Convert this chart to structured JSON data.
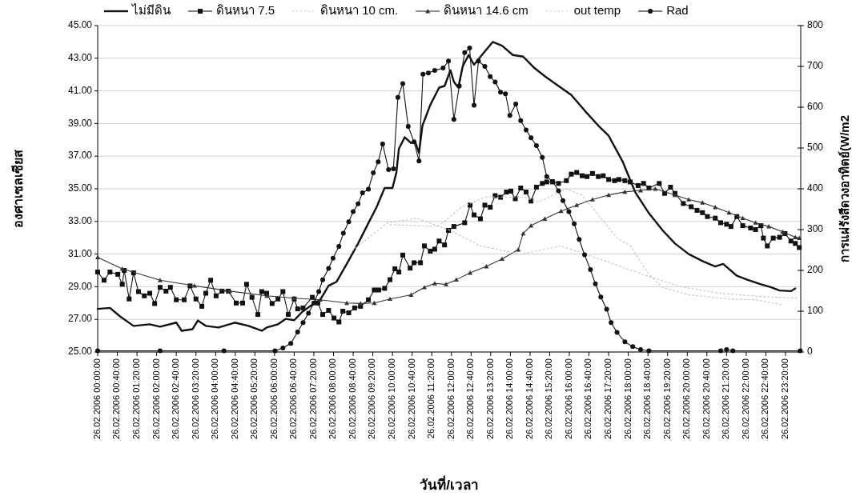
{
  "chart_data": {
    "type": "line",
    "xlabel": "วันที่/เวลา",
    "ylabel": "องศาเซลเซียส",
    "y2label": "การแผ่รังสีดวงอาทิตย์(W/m2",
    "xlim": [
      "2006-02-26T00:00",
      "2006-02-26T23:51"
    ],
    "ylim": [
      25,
      45
    ],
    "y2lim": [
      0,
      800
    ],
    "xticks": [
      {
        "value": "2006-02-26T00:00",
        "label": "26.02.2006 00:00:00"
      },
      {
        "value": "2006-02-26T00:40",
        "label": "26.02.2006 00:40:00"
      },
      {
        "value": "2006-02-26T01:20",
        "label": "26.02.2006 01:20:00"
      },
      {
        "value": "2006-02-26T02:00",
        "label": "26.02.2006 02:00:00"
      },
      {
        "value": "2006-02-26T02:40",
        "label": "26.02.2006 02:40:00"
      },
      {
        "value": "2006-02-26T03:20",
        "label": "26.02.2006 03:20:00"
      },
      {
        "value": "2006-02-26T04:00",
        "label": "26.02.2006 04:00:00"
      },
      {
        "value": "2006-02-26T04:40",
        "label": "26.02.2006 04:40:00"
      },
      {
        "value": "2006-02-26T05:20",
        "label": "26.02.2006 05:20:00"
      },
      {
        "value": "2006-02-26T06:00",
        "label": "26.02.2006 06:00:00"
      },
      {
        "value": "2006-02-26T06:40",
        "label": "26.02.2006 06:40:00"
      },
      {
        "value": "2006-02-26T07:20",
        "label": "26.02.2006 07:20:00"
      },
      {
        "value": "2006-02-26T08:00",
        "label": "26.02.2006 08:00:00"
      },
      {
        "value": "2006-02-26T08:40",
        "label": "26.02.2006 08:40:00"
      },
      {
        "value": "2006-02-26T09:20",
        "label": "26.02.2006 09:20:00"
      },
      {
        "value": "2006-02-26T10:00",
        "label": "26.02.2006 10:00:00"
      },
      {
        "value": "2006-02-26T10:40",
        "label": "26.02.2006 10:40:00"
      },
      {
        "value": "2006-02-26T11:20",
        "label": "26.02.2006 11:20:00"
      },
      {
        "value": "2006-02-26T12:00",
        "label": "26.02.2006 12:00:00"
      },
      {
        "value": "2006-02-26T12:40",
        "label": "26.02.2006 12:40:00"
      },
      {
        "value": "2006-02-26T13:20",
        "label": "26.02.2006 13:20:00"
      },
      {
        "value": "2006-02-26T14:00",
        "label": "26.02.2006 14:00:00"
      },
      {
        "value": "2006-02-26T14:40",
        "label": "26.02.2006 14:40:00"
      },
      {
        "value": "2006-02-26T15:20",
        "label": "26.02.2006 15:20:00"
      },
      {
        "value": "2006-02-26T16:00",
        "label": "26.02.2006 16:00:00"
      },
      {
        "value": "2006-02-26T16:40",
        "label": "26.02.2006 16:40:00"
      },
      {
        "value": "2006-02-26T17:20",
        "label": "26.02.2006 17:20:00"
      },
      {
        "value": "2006-02-26T18:00",
        "label": "26.02.2006 18:00:00"
      },
      {
        "value": "2006-02-26T18:40",
        "label": "26.02.2006 18:40:00"
      },
      {
        "value": "2006-02-26T19:20",
        "label": "26.02.2006 19:20:00"
      },
      {
        "value": "2006-02-26T20:00",
        "label": "26.02.2006 20:00:00"
      },
      {
        "value": "2006-02-26T20:40",
        "label": "26.02.2006 20:40:00"
      },
      {
        "value": "2006-02-26T21:20",
        "label": "26.02.2006 21:20:00"
      },
      {
        "value": "2006-02-26T22:00",
        "label": "26.02.2006 22:00:00"
      },
      {
        "value": "2006-02-26T22:40",
        "label": "26.02.2006 22:40:00"
      },
      {
        "value": "2006-02-26T23:20",
        "label": "26.02.2006 23:20:00"
      }
    ],
    "yticks": [
      {
        "value": 25,
        "label": "25.00"
      },
      {
        "value": 27,
        "label": "27.00"
      },
      {
        "value": 29,
        "label": "29.00"
      },
      {
        "value": 31,
        "label": "31.00"
      },
      {
        "value": 33,
        "label": "33.00"
      },
      {
        "value": 35,
        "label": "35.00"
      },
      {
        "value": 37,
        "label": "37.00"
      },
      {
        "value": 39,
        "label": "39.00"
      },
      {
        "value": 41,
        "label": "41.00"
      },
      {
        "value": 43,
        "label": "43.00"
      },
      {
        "value": 45,
        "label": "45.00"
      }
    ],
    "y2ticks": [
      0,
      100,
      200,
      300,
      400,
      500,
      600,
      700,
      800
    ],
    "grid": "y",
    "legend": "top",
    "series": [
      {
        "name": "ไม่มีดิน",
        "color": "#111111",
        "marker": "none",
        "x": [
          "2006-02-26T00:00",
          "2006-02-26T00:25",
          "2006-02-26T00:46",
          "2006-02-26T01:13",
          "2006-02-26T01:46",
          "2006-02-26T02:07",
          "2006-02-26T02:40",
          "2006-02-26T02:51",
          "2006-02-26T03:13",
          "2006-02-26T03:24",
          "2006-02-26T03:40",
          "2006-02-26T04:06",
          "2006-02-26T04:39",
          "2006-02-26T05:07",
          "2006-02-26T05:34",
          "2006-02-26T05:44",
          "2006-02-26T06:07",
          "2006-02-26T06:23",
          "2006-02-26T06:40",
          "2006-02-26T06:56",
          "2006-02-26T07:12",
          "2006-02-26T07:33",
          "2006-02-26T07:50",
          "2006-02-26T08:06",
          "2006-02-26T08:27",
          "2006-02-26T08:50",
          "2006-02-26T09:11",
          "2006-02-26T09:28",
          "2006-02-26T09:44",
          "2006-02-26T10:00",
          "2006-02-26T10:08",
          "2006-02-26T10:13",
          "2006-02-26T10:25",
          "2006-02-26T10:38",
          "2006-02-26T10:46",
          "2006-02-26T10:54",
          "2006-02-26T11:01",
          "2006-02-26T11:17",
          "2006-02-26T11:35",
          "2006-02-26T11:46",
          "2006-02-26T11:58",
          "2006-02-26T12:05",
          "2006-02-26T12:14",
          "2006-02-26T12:23",
          "2006-02-26T12:35",
          "2006-02-26T12:46",
          "2006-02-26T13:02",
          "2006-02-26T13:24",
          "2006-02-26T13:43",
          "2006-02-26T14:05",
          "2006-02-26T14:26",
          "2006-02-26T14:49",
          "2006-02-26T15:10",
          "2006-02-26T15:38",
          "2006-02-26T16:04",
          "2006-02-26T16:31",
          "2006-02-26T16:59",
          "2006-02-26T17:20",
          "2006-02-26T17:48",
          "2006-02-26T18:14",
          "2006-02-26T18:42",
          "2006-02-26T19:10",
          "2006-02-26T19:35",
          "2006-02-26T20:03",
          "2006-02-26T20:31",
          "2006-02-26T20:57",
          "2006-02-26T21:13",
          "2006-02-26T21:41",
          "2006-02-26T22:02",
          "2006-02-26T22:30",
          "2006-02-26T22:51",
          "2006-02-26T23:08",
          "2006-02-26T23:31",
          "2006-02-26T23:40"
        ],
        "values": [
          27.64,
          27.7,
          27.17,
          26.6,
          26.7,
          26.55,
          26.8,
          26.3,
          26.4,
          26.93,
          26.6,
          26.5,
          26.8,
          26.6,
          26.3,
          26.5,
          26.7,
          27.03,
          26.95,
          27.45,
          27.8,
          28.2,
          29.06,
          29.3,
          30.4,
          31.65,
          32.9,
          33.9,
          35.05,
          35.05,
          36.0,
          37.45,
          38.16,
          37.8,
          37.9,
          37.2,
          38.87,
          40.14,
          41.2,
          41.3,
          42.26,
          41.56,
          41.2,
          42.5,
          43.2,
          42.6,
          43.2,
          44.0,
          43.77,
          43.2,
          43.1,
          42.4,
          41.9,
          41.3,
          40.75,
          39.8,
          38.87,
          38.25,
          36.7,
          34.8,
          33.5,
          32.45,
          31.65,
          31.0,
          30.57,
          30.24,
          30.4,
          29.67,
          29.43,
          29.15,
          28.96,
          28.77,
          28.73,
          28.9
        ]
      },
      {
        "name": "ดินหนา 7.5",
        "color": "#111111",
        "marker": "square",
        "x": [
          "2006-02-26T00:00",
          "2006-02-26T00:13",
          "2006-02-26T00:25",
          "2006-02-26T00:41",
          "2006-02-26T00:50",
          "2006-02-26T00:54",
          "2006-02-26T01:04",
          "2006-02-26T01:13",
          "2006-02-26T01:23",
          "2006-02-26T01:35",
          "2006-02-26T01:46",
          "2006-02-26T01:56",
          "2006-02-26T02:07",
          "2006-02-26T02:19",
          "2006-02-26T02:28",
          "2006-02-26T02:40",
          "2006-02-26T02:56",
          "2006-02-26T03:08",
          "2006-02-26T03:20",
          "2006-02-26T03:32",
          "2006-02-26T03:40",
          "2006-02-26T03:50",
          "2006-02-26T04:01",
          "2006-02-26T04:13",
          "2006-02-26T04:26",
          "2006-02-26T04:42",
          "2006-02-26T04:55",
          "2006-02-26T05:03",
          "2006-02-26T05:14",
          "2006-02-26T05:26",
          "2006-02-26T05:34",
          "2006-02-26T05:44",
          "2006-02-26T05:55",
          "2006-02-26T06:07",
          "2006-02-26T06:17",
          "2006-02-26T06:28",
          "2006-02-26T06:40",
          "2006-02-26T06:47",
          "2006-02-26T06:58",
          "2006-02-26T07:17",
          "2006-02-26T07:28",
          "2006-02-26T07:38",
          "2006-02-26T07:50",
          "2006-02-26T08:01",
          "2006-02-26T08:11",
          "2006-02-26T08:19",
          "2006-02-26T08:31",
          "2006-02-26T08:43",
          "2006-02-26T08:55",
          "2006-02-26T09:11",
          "2006-02-26T09:23",
          "2006-02-26T09:32",
          "2006-02-26T09:44",
          "2006-02-26T09:55",
          "2006-02-26T10:05",
          "2006-02-26T10:13",
          "2006-02-26T10:21",
          "2006-02-26T10:36",
          "2006-02-26T10:44",
          "2006-02-26T10:57",
          "2006-02-26T11:05",
          "2006-02-26T11:17",
          "2006-02-26T11:26",
          "2006-02-26T11:35",
          "2006-02-26T11:46",
          "2006-02-26T11:54",
          "2006-02-26T12:05",
          "2006-02-26T12:27",
          "2006-02-26T12:38",
          "2006-02-26T12:46",
          "2006-02-26T12:59",
          "2006-02-26T13:08",
          "2006-02-26T13:19",
          "2006-02-26T13:29",
          "2006-02-26T13:40",
          "2006-02-26T13:52",
          "2006-02-26T14:01",
          "2006-02-26T14:10",
          "2006-02-26T14:21",
          "2006-02-26T14:32",
          "2006-02-26T14:42",
          "2006-02-26T14:53",
          "2006-02-26T15:05",
          "2006-02-26T15:14",
          "2006-02-26T15:26",
          "2006-02-26T15:38",
          "2006-02-26T15:54",
          "2006-02-26T16:04",
          "2006-02-26T16:15",
          "2006-02-26T16:26",
          "2006-02-26T16:36",
          "2006-02-26T16:47",
          "2006-02-26T16:59",
          "2006-02-26T17:09",
          "2006-02-26T17:20",
          "2006-02-26T17:32",
          "2006-02-26T17:41",
          "2006-02-26T17:53",
          "2006-02-26T18:04",
          "2006-02-26T18:20",
          "2006-02-26T18:31",
          "2006-02-26T18:42",
          "2006-02-26T19:03",
          "2006-02-26T19:14",
          "2006-02-26T19:26",
          "2006-02-26T19:35",
          "2006-02-26T19:52",
          "2006-02-26T20:08",
          "2006-02-26T20:20",
          "2006-02-26T20:31",
          "2006-02-26T20:41",
          "2006-02-26T20:57",
          "2006-02-26T21:08",
          "2006-02-26T21:20",
          "2006-02-26T21:29",
          "2006-02-26T21:41",
          "2006-02-26T21:53",
          "2006-02-26T22:09",
          "2006-02-26T22:19",
          "2006-02-26T22:30",
          "2006-02-26T22:35",
          "2006-02-26T22:43",
          "2006-02-26T22:55",
          "2006-02-26T23:08",
          "2006-02-26T23:19",
          "2006-02-26T23:31",
          "2006-02-26T23:40",
          "2006-02-26T23:48"
        ],
        "values": [
          29.9,
          29.4,
          29.9,
          29.76,
          29.15,
          30.0,
          28.25,
          29.85,
          28.7,
          28.44,
          28.6,
          27.97,
          28.96,
          28.73,
          28.96,
          28.2,
          28.2,
          29.05,
          28.25,
          27.8,
          28.6,
          29.4,
          28.44,
          28.73,
          28.73,
          28.0,
          28.0,
          29.15,
          28.35,
          27.3,
          28.7,
          28.6,
          27.97,
          28.25,
          28.7,
          27.3,
          28.25,
          27.64,
          27.7,
          28.35,
          28.0,
          27.3,
          27.55,
          27.08,
          26.84,
          27.5,
          27.4,
          27.7,
          27.8,
          28.2,
          28.8,
          28.8,
          28.9,
          29.43,
          30.1,
          29.9,
          30.94,
          30.14,
          30.47,
          30.47,
          31.5,
          31.18,
          31.3,
          31.8,
          31.56,
          32.45,
          32.69,
          32.92,
          34.0,
          33.4,
          33.16,
          34.0,
          33.87,
          34.58,
          34.48,
          34.8,
          34.86,
          34.39,
          35.05,
          34.8,
          34.25,
          35.1,
          35.33,
          35.42,
          35.42,
          35.33,
          35.5,
          35.9,
          36.0,
          35.8,
          35.75,
          35.94,
          35.75,
          35.8,
          35.57,
          35.5,
          35.57,
          35.5,
          35.42,
          35.2,
          35.33,
          35.05,
          35.33,
          34.72,
          35.1,
          34.72,
          34.1,
          33.9,
          33.68,
          33.54,
          33.3,
          33.2,
          32.92,
          32.83,
          32.69,
          33.3,
          32.74,
          32.6,
          32.5,
          32.74,
          31.98,
          31.5,
          31.98,
          32.03,
          32.26,
          31.8,
          31.65,
          31.4
        ]
      },
      {
        "name": "ดินหนา 10 cm.",
        "color": "#c4c4c4",
        "marker": "none",
        "line_style": "dotted",
        "x": [
          "2006-02-26T09:55",
          "2006-02-26T11:33",
          "2006-02-26T12:22",
          "2006-02-26T13:11",
          "2006-02-26T14:26",
          "2006-02-26T14:58",
          "2006-02-26T15:54",
          "2006-02-26T16:26",
          "2006-02-26T17:37",
          "2006-02-26T18:04",
          "2006-02-26T18:42",
          "2006-02-26T19:10",
          "2006-02-26T20:03",
          "2006-02-26T21:25",
          "2006-02-26T22:19",
          "2006-02-26T23:14"
        ],
        "values": [
          32.8,
          32.7,
          33.9,
          34.5,
          34.5,
          34.2,
          35.0,
          34.6,
          32.0,
          31.5,
          29.76,
          28.96,
          28.5,
          28.25,
          28.2,
          27.9
        ]
      },
      {
        "name": "ดินหนา 14.6 cm",
        "color": "#333333",
        "marker": "triangle",
        "x": [
          "2006-02-26T00:00",
          "2006-02-26T00:50",
          "2006-02-26T02:07",
          "2006-02-26T03:17",
          "2006-02-26T04:29",
          "2006-02-26T05:44",
          "2006-02-26T06:40",
          "2006-02-26T07:33",
          "2006-02-26T08:27",
          "2006-02-26T08:55",
          "2006-02-26T09:23",
          "2006-02-26T09:55",
          "2006-02-26T10:38",
          "2006-02-26T11:05",
          "2006-02-26T11:26",
          "2006-02-26T11:49",
          "2006-02-26T12:10",
          "2006-02-26T12:38",
          "2006-02-26T13:11",
          "2006-02-26T13:43",
          "2006-02-26T14:16",
          "2006-02-26T14:26",
          "2006-02-26T14:42",
          "2006-02-26T15:10",
          "2006-02-26T15:43",
          "2006-02-26T16:15",
          "2006-02-26T16:47",
          "2006-02-26T17:20",
          "2006-02-26T17:53",
          "2006-02-26T18:25",
          "2006-02-26T18:55",
          "2006-02-26T19:35",
          "2006-02-26T20:03",
          "2006-02-26T20:31",
          "2006-02-26T20:57",
          "2006-02-26T21:25",
          "2006-02-26T21:53",
          "2006-02-26T22:19",
          "2006-02-26T22:46",
          "2006-02-26T23:14",
          "2006-02-26T23:40",
          "2006-02-26T23:48"
        ],
        "values": [
          30.8,
          30.1,
          29.4,
          29.06,
          28.73,
          28.44,
          28.3,
          28.2,
          28.0,
          27.97,
          28.0,
          28.25,
          28.5,
          28.96,
          29.2,
          29.15,
          29.43,
          29.85,
          30.24,
          30.7,
          31.27,
          32.26,
          32.74,
          33.16,
          33.63,
          34.0,
          34.34,
          34.62,
          34.81,
          34.9,
          35.0,
          34.62,
          34.34,
          34.15,
          33.87,
          33.54,
          33.2,
          32.92,
          32.69,
          32.36,
          32.03,
          31.98
        ]
      },
      {
        "name": "out temp",
        "color": "#c4c4c4",
        "marker": "none",
        "line_style": "dotted",
        "x": [
          "2006-02-26T08:38",
          "2006-02-26T09:49",
          "2006-02-26T10:49",
          "2006-02-26T11:54",
          "2006-02-26T12:59",
          "2006-02-26T14:21",
          "2006-02-26T15:43",
          "2006-02-26T17:20",
          "2006-02-26T18:25",
          "2006-02-26T19:47",
          "2006-02-26T21:08",
          "2006-02-26T22:30",
          "2006-02-26T23:48"
        ],
        "values": [
          31.2,
          32.9,
          33.2,
          32.5,
          31.5,
          31.0,
          31.5,
          30.5,
          29.8,
          29.0,
          28.6,
          28.4,
          28.3
        ]
      },
      {
        "name": "Rad",
        "color": "#111111",
        "marker": "circle",
        "axis": "y2",
        "x": [
          "2006-02-26T00:00",
          "2006-02-26T02:07",
          "2006-02-26T04:17",
          "2006-02-26T06:01",
          "2006-02-26T06:17",
          "2006-02-26T06:33",
          "2006-02-26T06:47",
          "2006-02-26T06:58",
          "2006-02-26T07:09",
          "2006-02-26T07:20",
          "2006-02-26T07:30",
          "2006-02-26T07:38",
          "2006-02-26T07:50",
          "2006-02-26T07:59",
          "2006-02-26T08:11",
          "2006-02-26T08:20",
          "2006-02-26T08:31",
          "2006-02-26T08:40",
          "2006-02-26T08:50",
          "2006-02-26T08:59",
          "2006-02-26T09:11",
          "2006-02-26T09:21",
          "2006-02-26T09:31",
          "2006-02-26T09:40",
          "2006-02-26T09:52",
          "2006-02-26T10:02",
          "2006-02-26T10:11",
          "2006-02-26T10:21",
          "2006-02-26T10:32",
          "2006-02-26T10:44",
          "2006-02-26T10:54",
          "2006-02-26T11:02",
          "2006-02-26T11:13",
          "2006-02-26T11:26",
          "2006-02-26T11:43",
          "2006-02-26T11:54",
          "2006-02-26T12:05",
          "2006-02-26T12:16",
          "2006-02-26T12:27",
          "2006-02-26T12:37",
          "2006-02-26T12:46",
          "2006-02-26T12:55",
          "2006-02-26T13:08",
          "2006-02-26T13:19",
          "2006-02-26T13:29",
          "2006-02-26T13:40",
          "2006-02-26T13:50",
          "2006-02-26T13:59",
          "2006-02-26T14:11",
          "2006-02-26T14:21",
          "2006-02-26T14:32",
          "2006-02-26T14:42",
          "2006-02-26T14:53",
          "2006-02-26T15:05",
          "2006-02-26T15:14",
          "2006-02-26T15:26",
          "2006-02-26T15:38",
          "2006-02-26T15:47",
          "2006-02-26T15:59",
          "2006-02-26T16:10",
          "2006-02-26T16:20",
          "2006-02-26T16:31",
          "2006-02-26T16:43",
          "2006-02-26T16:53",
          "2006-02-26T17:04",
          "2006-02-26T17:16",
          "2006-02-26T17:25",
          "2006-02-26T17:37",
          "2006-02-26T17:53",
          "2006-02-26T18:09",
          "2006-02-26T18:25",
          "2006-02-26T18:42",
          "2006-02-26T21:08",
          "2006-02-26T21:20",
          "2006-02-26T21:33",
          "2006-02-26T23:50"
        ],
        "values": [
          3,
          3,
          3,
          3,
          10,
          21,
          49,
          72,
          95,
          120,
          148,
          177,
          205,
          230,
          259,
          291,
          319,
          344,
          363,
          390,
          399,
          439,
          466,
          510,
          447,
          449,
          624,
          658,
          553,
          515,
          468,
          681,
          684,
          690,
          696,
          713,
          570,
          652,
          734,
          745,
          605,
          713,
          700,
          675,
          662,
          637,
          633,
          580,
          608,
          567,
          544,
          525,
          506,
          477,
          430,
          418,
          395,
          371,
          344,
          314,
          276,
          238,
          202,
          167,
          135,
          105,
          72,
          48,
          25,
          13,
          6,
          3,
          3,
          6,
          3,
          3
        ]
      }
    ]
  }
}
